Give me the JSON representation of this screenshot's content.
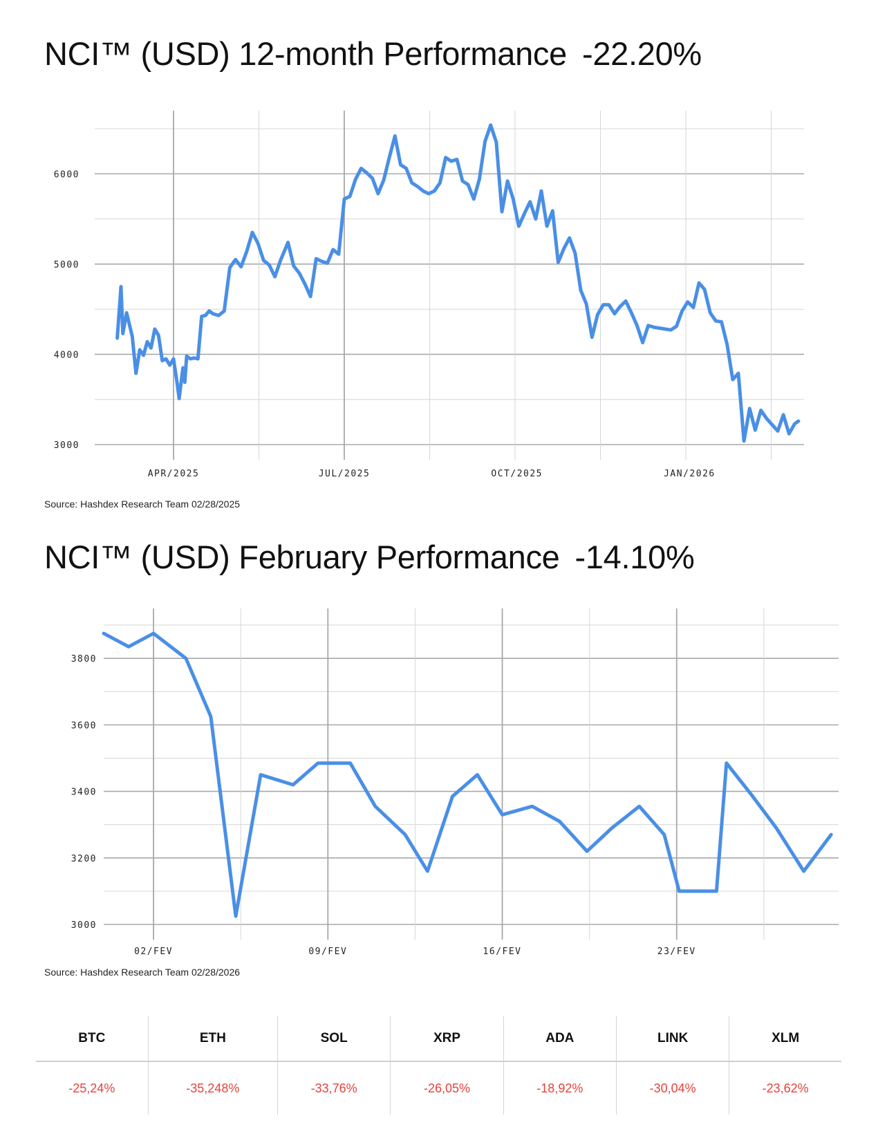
{
  "charts_header": {
    "chart1_title": "NCI™ (USD) 12-month Performance",
    "chart1_performance": "-22.20%",
    "chart1_source": "Source: Hashdex Research Team 02/28/2025",
    "chart2_title": "NCI™ (USD) February Performance",
    "chart2_performance": "-14.10%",
    "chart2_source": "Source: Hashdex Research Team 02/28/2026"
  },
  "colors": {
    "line": "#4a8fe6",
    "negative": "#e8413a",
    "grid": "#d6d6d6",
    "grid_major": "#a8a8a8"
  },
  "chart_data": [
    {
      "type": "line",
      "title": "NCI™ (USD) 12-month Performance",
      "ylim": [
        3000,
        6700
      ],
      "yticks": [
        3000,
        4000,
        5000,
        6000
      ],
      "ytick_labels": [
        "3000",
        "4000",
        "5000",
        "6000"
      ],
      "xlim": [
        "2025-02-18",
        "2026-03-03"
      ],
      "xticks": [
        "2025-04-01",
        "2025-07-01",
        "2025-10-01",
        "2026-01-01"
      ],
      "xtick_labels": [
        "APR/2025",
        "JUL/2025",
        "OCT/2025",
        "JAN/2026"
      ],
      "grid": true,
      "series": [
        {
          "x": [
            "2025-03-02",
            "2025-03-04",
            "2025-03-05",
            "2025-03-07",
            "2025-03-10",
            "2025-03-12",
            "2025-03-14",
            "2025-03-16",
            "2025-03-18",
            "2025-03-20",
            "2025-03-22",
            "2025-03-24",
            "2025-03-26",
            "2025-03-28",
            "2025-03-30",
            "2025-04-01",
            "2025-04-03",
            "2025-04-04",
            "2025-04-06",
            "2025-04-07",
            "2025-04-08",
            "2025-04-10",
            "2025-04-12",
            "2025-04-14",
            "2025-04-16",
            "2025-04-18",
            "2025-04-20",
            "2025-04-22",
            "2025-04-25",
            "2025-04-28",
            "2025-05-01",
            "2025-05-04",
            "2025-05-07",
            "2025-05-10",
            "2025-05-13",
            "2025-05-16",
            "2025-05-19",
            "2025-05-22",
            "2025-05-25",
            "2025-05-28",
            "2025-06-01",
            "2025-06-04",
            "2025-06-07",
            "2025-06-10",
            "2025-06-13",
            "2025-06-16",
            "2025-06-19",
            "2025-06-22",
            "2025-06-25",
            "2025-06-28",
            "2025-07-01",
            "2025-07-04",
            "2025-07-07",
            "2025-07-10",
            "2025-07-13",
            "2025-07-16",
            "2025-07-19",
            "2025-07-22",
            "2025-07-25",
            "2025-07-28",
            "2025-07-31",
            "2025-08-03",
            "2025-08-06",
            "2025-08-09",
            "2025-08-12",
            "2025-08-15",
            "2025-08-18",
            "2025-08-21",
            "2025-08-24",
            "2025-08-27",
            "2025-08-30",
            "2025-09-02",
            "2025-09-05",
            "2025-09-08",
            "2025-09-11",
            "2025-09-14",
            "2025-09-17",
            "2025-09-20",
            "2025-09-23",
            "2025-09-26",
            "2025-09-29",
            "2025-10-02",
            "2025-10-05",
            "2025-10-08",
            "2025-10-11",
            "2025-10-14",
            "2025-10-17",
            "2025-10-20",
            "2025-10-23",
            "2025-10-26",
            "2025-10-29",
            "2025-11-01",
            "2025-11-04",
            "2025-11-07",
            "2025-11-10",
            "2025-11-13",
            "2025-11-16",
            "2025-11-19",
            "2025-11-22",
            "2025-11-25",
            "2025-11-28",
            "2025-12-01",
            "2025-12-04",
            "2025-12-07",
            "2025-12-10",
            "2025-12-13",
            "2025-12-16",
            "2025-12-19",
            "2025-12-22",
            "2025-12-25",
            "2025-12-28",
            "2025-12-31",
            "2026-01-03",
            "2026-01-06",
            "2026-01-09",
            "2026-01-12",
            "2026-01-15",
            "2026-01-18",
            "2026-01-21",
            "2026-01-24",
            "2026-01-27",
            "2026-01-30",
            "2026-02-02",
            "2026-02-05",
            "2026-02-08",
            "2026-02-11",
            "2026-02-14",
            "2026-02-17",
            "2026-02-20",
            "2026-02-23",
            "2026-02-26",
            "2026-02-28"
          ],
          "values": [
            4180,
            4750,
            4230,
            4460,
            4200,
            3790,
            4050,
            3990,
            4140,
            4070,
            4280,
            4210,
            3930,
            3950,
            3880,
            3950,
            3670,
            3510,
            3850,
            3690,
            3980,
            3950,
            3960,
            3950,
            4420,
            4430,
            4480,
            4450,
            4430,
            4480,
            4960,
            5050,
            4970,
            5140,
            5350,
            5230,
            5040,
            4990,
            4860,
            5040,
            5240,
            4980,
            4900,
            4780,
            4640,
            5060,
            5030,
            5010,
            5160,
            5110,
            5720,
            5750,
            5940,
            6060,
            6010,
            5950,
            5780,
            5930,
            6180,
            6420,
            6100,
            6060,
            5900,
            5860,
            5810,
            5780,
            5810,
            5900,
            6180,
            6140,
            6160,
            5920,
            5880,
            5720,
            5940,
            6360,
            6540,
            6350,
            5580,
            5920,
            5720,
            5420,
            5560,
            5690,
            5500,
            5810,
            5420,
            5590,
            5020,
            5170,
            5290,
            5120,
            4710,
            4560,
            4190,
            4440,
            4550,
            4550,
            4450,
            4530,
            4590,
            4460,
            4320,
            4130,
            4320,
            4300,
            4290,
            4280,
            4270,
            4310,
            4480,
            4580,
            4520,
            4790,
            4720,
            4460,
            4370,
            4360,
            4110,
            3720,
            3790,
            3040,
            3400,
            3160,
            3380,
            3290,
            3220,
            3150,
            3330,
            3120,
            3230,
            3260
          ]
        }
      ]
    },
    {
      "type": "line",
      "title": "NCI™ (USD) February Performance",
      "ylim": [
        3000,
        3950
      ],
      "yticks": [
        3000,
        3200,
        3400,
        3600,
        3800
      ],
      "ytick_labels": [
        "3000",
        "3200",
        "3400",
        "3600",
        "3800"
      ],
      "xlim": [
        0.0,
        29.5
      ],
      "xticks": [
        2,
        9,
        16,
        23
      ],
      "xtick_labels": [
        "02/FEV",
        "09/FEV",
        "16/FEV",
        "23/FEV"
      ],
      "grid": true,
      "series": [
        {
          "x": [
            0,
            1,
            2,
            3.3,
            4.3,
            5.3,
            6.3,
            7.6,
            8.6,
            9.9,
            10.9,
            12.1,
            13.0,
            14.0,
            15.0,
            16.0,
            17.2,
            18.3,
            19.4,
            20.4,
            21.5,
            22.5,
            23.1,
            24.6,
            25.0,
            26.0,
            27.0,
            28.1,
            29.2
          ],
          "values": [
            3875,
            3835,
            3875,
            3800,
            3625,
            3025,
            3450,
            3420,
            3485,
            3485,
            3355,
            3270,
            3160,
            3385,
            3450,
            3330,
            3355,
            3310,
            3220,
            3290,
            3355,
            3270,
            3100,
            3100,
            3485,
            3390,
            3290,
            3160,
            3270
          ]
        }
      ]
    }
  ],
  "assets_table": {
    "headers": [
      "BTC",
      "ETH",
      "SOL",
      "XRP",
      "ADA",
      "LINK",
      "XLM"
    ],
    "values": [
      "-25,24%",
      "-35,248%",
      "-33,76%",
      "-26,05%",
      "-18,92%",
      "-30,04%",
      "-23,62%"
    ]
  }
}
